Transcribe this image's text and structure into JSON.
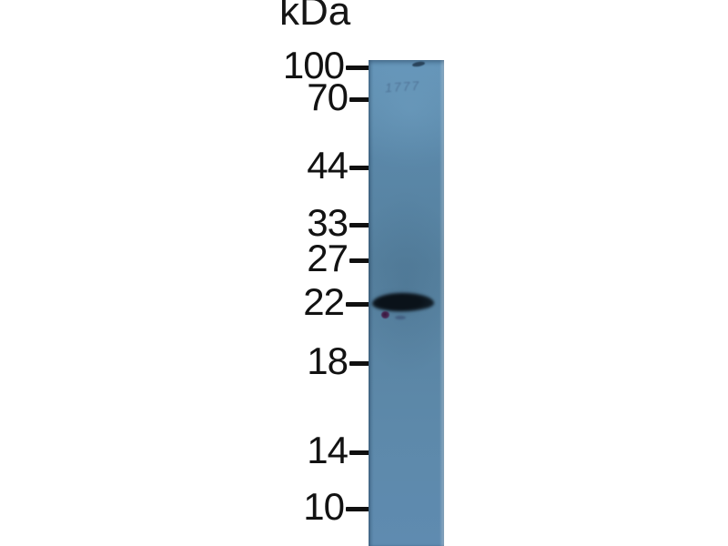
{
  "figure": {
    "kind": "western-blot-photo",
    "unit_label": "kDa",
    "ladder": [
      "100",
      "70",
      "44",
      "33",
      "27",
      "22",
      "18",
      "14",
      "10"
    ],
    "band": {
      "approx_kda": "22",
      "intensity": "strong",
      "color": "#0c141b"
    },
    "faint_marking": "1777",
    "colors": {
      "background": "#ffffff",
      "lane": "#5c88aa",
      "label_text": "#121212",
      "dye_dot": "#4b2b55"
    }
  }
}
